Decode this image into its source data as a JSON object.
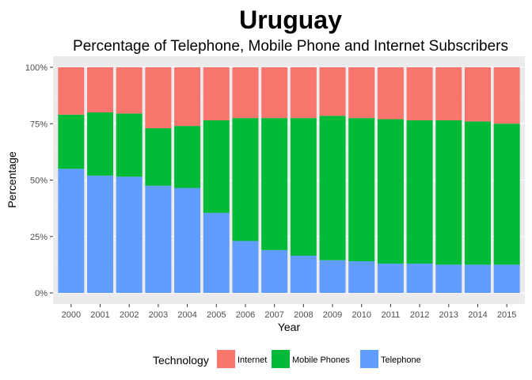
{
  "chart_data": {
    "type": "bar",
    "stacked": true,
    "title": "Uruguay",
    "subtitle": "Percentage of Telephone, Mobile Phone and Internet Subscribers",
    "xlabel": "Year",
    "ylabel": "Percentage",
    "ylim": [
      0,
      100
    ],
    "yticks": [
      "0%",
      "25%",
      "50%",
      "75%",
      "100%"
    ],
    "ytick_values": [
      0,
      25,
      50,
      75,
      100
    ],
    "grid": true,
    "legend_position": "bottom",
    "legend_title": "Technology",
    "categories": [
      "2000",
      "2001",
      "2002",
      "2003",
      "2004",
      "2005",
      "2006",
      "2007",
      "2008",
      "2009",
      "2010",
      "2011",
      "2012",
      "2013",
      "2014",
      "2015"
    ],
    "series": [
      {
        "name": "Telephone",
        "color": "#619CFF",
        "values": [
          55,
          52,
          51.5,
          47.5,
          46.5,
          35.5,
          23,
          19,
          16.5,
          14.5,
          14,
          13,
          13,
          12.5,
          12.5,
          12.5
        ]
      },
      {
        "name": "Mobile Phones",
        "color": "#00BA38",
        "values": [
          24,
          28,
          28,
          25.5,
          27.5,
          41,
          54.5,
          58.5,
          61,
          64,
          63.5,
          64,
          63.5,
          64,
          63.5,
          62.5
        ]
      },
      {
        "name": "Internet",
        "color": "#F8766D",
        "values": [
          21,
          20,
          20.5,
          27,
          26,
          23.5,
          22.5,
          22.5,
          22.5,
          21.5,
          22.5,
          23,
          23.5,
          23.5,
          24,
          25
        ]
      }
    ]
  }
}
